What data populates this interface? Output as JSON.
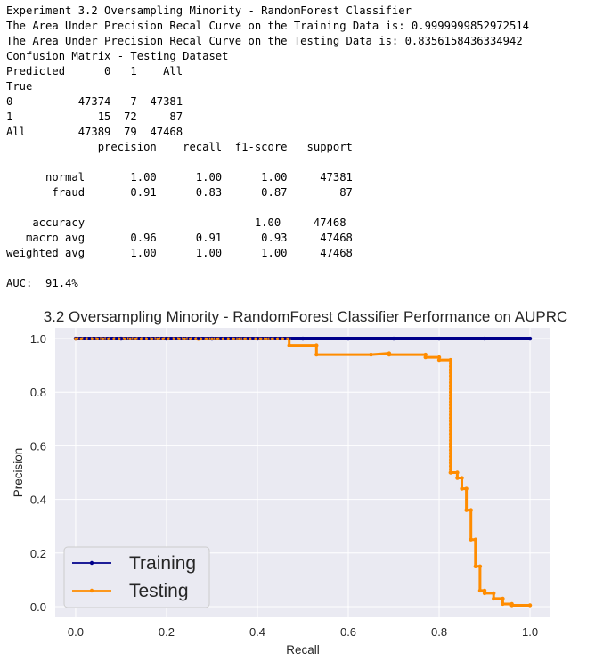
{
  "output": {
    "lines": [
      "Experiment 3.2 Oversampling Minority - RandomForest Classifier",
      "The Area Under Precision Recal Curve on the Training Data is: 0.9999999852972514",
      "The Area Under Precision Recal Curve on the Testing Data is: 0.8356158436334942",
      "Confusion Matrix - Testing Dataset",
      "Predicted      0   1    All",
      "True",
      "0          47374   7  47381",
      "1             15  72     87",
      "All        47389  79  47468",
      "              precision    recall  f1-score   support",
      "",
      "      normal       1.00      1.00      1.00     47381",
      "       fraud       0.91      0.83      0.87        87",
      "",
      "    accuracy                          1.00     47468",
      "   macro avg       0.96      0.91      0.93     47468",
      "weighted avg       1.00      1.00      1.00     47468",
      "",
      "AUC:  91.4%"
    ]
  },
  "chart_data": {
    "type": "line",
    "title": "3.2 Oversampling Minority - RandomForest Classifier Performance on AUPRC",
    "xlabel": "Recall",
    "ylabel": "Precision",
    "xlim": [
      -0.045,
      1.045
    ],
    "ylim": [
      -0.04,
      1.04
    ],
    "xticks": [
      "0.0",
      "0.2",
      "0.4",
      "0.6",
      "0.8",
      "1.0"
    ],
    "yticks": [
      "0.0",
      "0.2",
      "0.4",
      "0.6",
      "0.8",
      "1.0"
    ],
    "grid": true,
    "legend": "lower left",
    "colors": {
      "training": "#00008b",
      "testing": "#ff8c00",
      "background": "#eaeaf2",
      "grid": "#ffffff"
    },
    "series": [
      {
        "name": "Training",
        "x": [
          0.0,
          0.1,
          0.2,
          0.3,
          0.4,
          0.5,
          0.6,
          0.7,
          0.8,
          0.9,
          1.0
        ],
        "y": [
          1.0,
          1.0,
          1.0,
          1.0,
          1.0,
          1.0,
          1.0,
          1.0,
          1.0,
          1.0,
          1.0
        ]
      },
      {
        "name": "Testing",
        "x": [
          0.0,
          0.27,
          0.27,
          0.47,
          0.47,
          0.53,
          0.53,
          0.65,
          0.69,
          0.69,
          0.77,
          0.77,
          0.8,
          0.8,
          0.825,
          0.825,
          0.826,
          0.84,
          0.84,
          0.85,
          0.85,
          0.86,
          0.86,
          0.87,
          0.87,
          0.88,
          0.88,
          0.89,
          0.89,
          0.9,
          0.9,
          0.92,
          0.92,
          0.94,
          0.94,
          0.96,
          0.96,
          1.0
        ],
        "y": [
          1.0,
          1.0,
          0.999,
          0.999,
          0.975,
          0.975,
          0.94,
          0.94,
          0.945,
          0.94,
          0.94,
          0.93,
          0.93,
          0.92,
          0.92,
          0.5,
          0.5,
          0.5,
          0.48,
          0.48,
          0.44,
          0.44,
          0.36,
          0.36,
          0.25,
          0.25,
          0.15,
          0.15,
          0.06,
          0.06,
          0.05,
          0.05,
          0.03,
          0.03,
          0.01,
          0.01,
          0.005,
          0.005
        ]
      }
    ]
  }
}
